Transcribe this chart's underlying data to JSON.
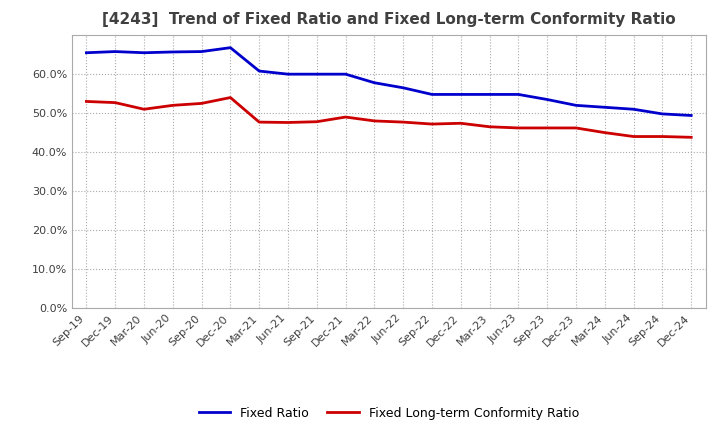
{
  "title": "[4243]  Trend of Fixed Ratio and Fixed Long-term Conformity Ratio",
  "title_color": "#404040",
  "background_color": "#ffffff",
  "plot_background": "#ffffff",
  "grid_color": "#aaaaaa",
  "x_labels": [
    "Sep-19",
    "Dec-19",
    "Mar-20",
    "Jun-20",
    "Sep-20",
    "Dec-20",
    "Mar-21",
    "Jun-21",
    "Sep-21",
    "Dec-21",
    "Mar-22",
    "Jun-22",
    "Sep-22",
    "Dec-22",
    "Mar-23",
    "Jun-23",
    "Sep-23",
    "Dec-23",
    "Mar-24",
    "Jun-24",
    "Sep-24",
    "Dec-24"
  ],
  "fixed_ratio": [
    0.655,
    0.658,
    0.655,
    0.657,
    0.658,
    0.668,
    0.608,
    0.6,
    0.6,
    0.6,
    0.578,
    0.565,
    0.548,
    0.548,
    0.548,
    0.548,
    0.535,
    0.52,
    0.515,
    0.51,
    0.498,
    0.494
  ],
  "fixed_lt_ratio": [
    0.53,
    0.527,
    0.51,
    0.52,
    0.525,
    0.54,
    0.477,
    0.476,
    0.478,
    0.49,
    0.48,
    0.477,
    0.472,
    0.474,
    0.465,
    0.462,
    0.462,
    0.462,
    0.45,
    0.44,
    0.44,
    0.438
  ],
  "fixed_ratio_color": "#0000cc",
  "fixed_lt_ratio_color": "#cc0000",
  "fixed_ratio_label": "Fixed Ratio",
  "fixed_lt_ratio_label": "Fixed Long-term Conformity Ratio",
  "ylim": [
    0.0,
    0.7
  ],
  "yticks": [
    0.0,
    0.1,
    0.2,
    0.3,
    0.4,
    0.5,
    0.6
  ],
  "line_width": 2.0
}
